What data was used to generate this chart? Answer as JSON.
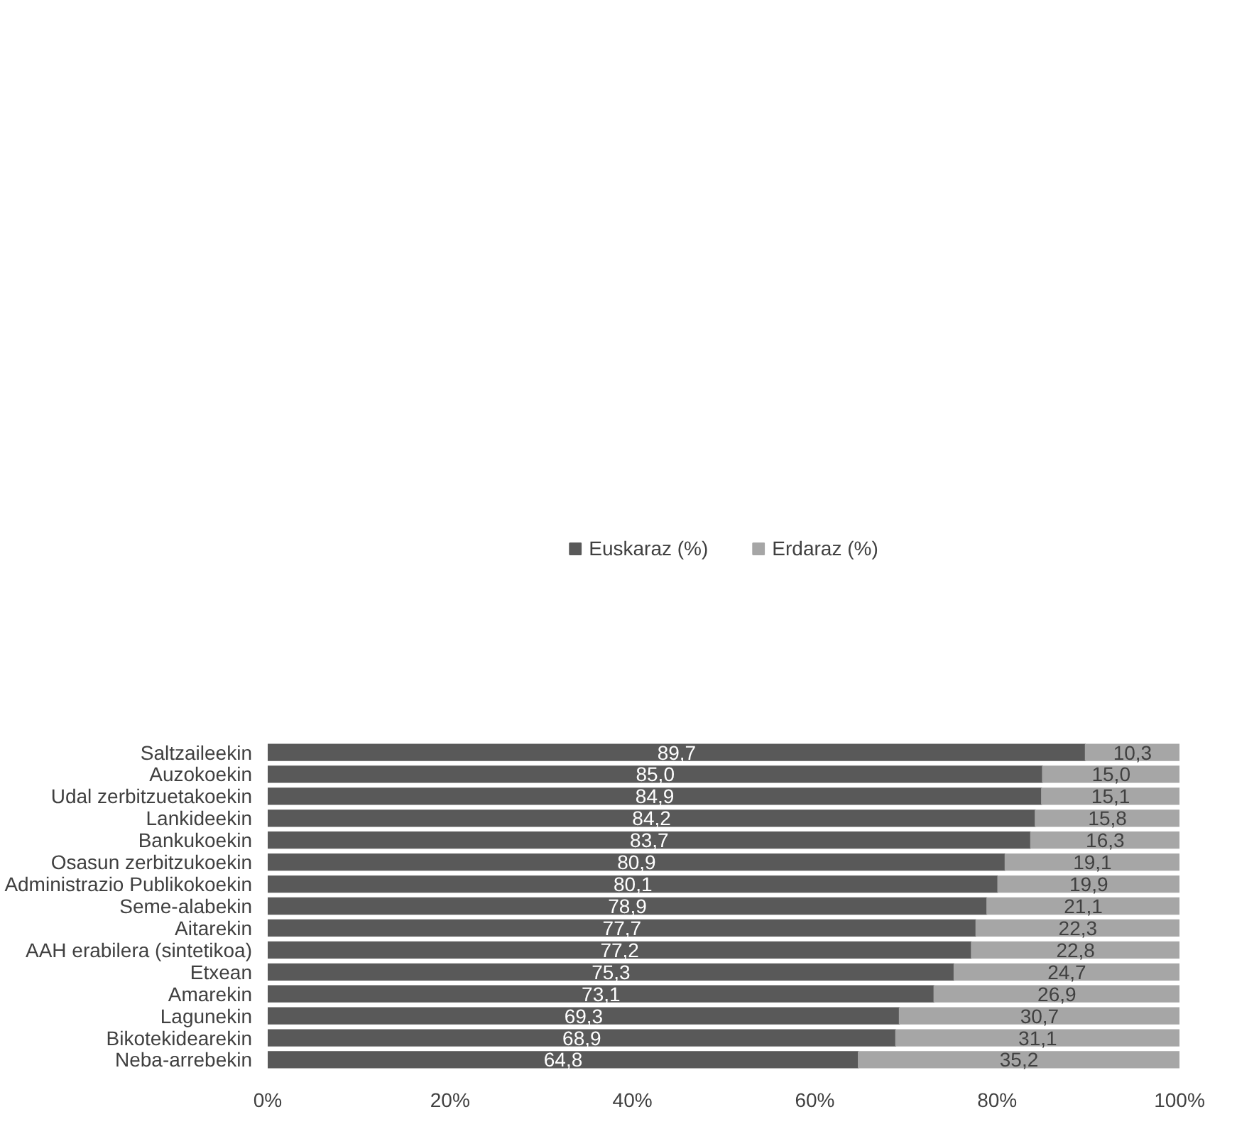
{
  "chart_data": {
    "type": "bar",
    "orientation": "horizontal",
    "stacked": true,
    "legend": "top",
    "grid": false,
    "categories": [
      "Saltzaileekin",
      "Auzokoekin",
      "Udal zerbitzuetakoekin",
      "Lankideekin",
      "Bankukoekin",
      "Osasun zerbitzukoekin",
      "Administrazio Publikokoekin",
      "Seme-alabekin",
      "Aitarekin",
      "AAH erabilera (sintetikoa)",
      "Etxean",
      "Amarekin",
      "Lagunekin",
      "Bikotekidearekin",
      "Neba-arrebekin"
    ],
    "xlim": [
      0,
      100
    ],
    "xticks": [
      {
        "value": 0,
        "label": "0%"
      },
      {
        "value": 20,
        "label": "20%"
      },
      {
        "value": 40,
        "label": "40%"
      },
      {
        "value": 60,
        "label": "60%"
      },
      {
        "value": 80,
        "label": "80%"
      },
      {
        "value": 100,
        "label": "100%"
      }
    ],
    "series": [
      {
        "name": "Euskaraz (%)",
        "color": "#595959",
        "values": [
          89.7,
          85.0,
          84.9,
          84.2,
          83.7,
          80.9,
          80.1,
          78.9,
          77.7,
          77.2,
          75.3,
          73.1,
          69.3,
          68.9,
          64.8
        ],
        "value_labels": [
          "89,7",
          "85,0",
          "84,9",
          "84,2",
          "83,7",
          "80,9",
          "80,1",
          "78,9",
          "77,7",
          "77,2",
          "75,3",
          "73,1",
          "69,3",
          "68,9",
          "64,8"
        ]
      },
      {
        "name": "Erdaraz (%)",
        "color": "#a6a6a6",
        "values": [
          10.3,
          15.0,
          15.1,
          15.8,
          16.3,
          19.1,
          19.9,
          21.1,
          22.3,
          22.8,
          24.7,
          26.9,
          30.7,
          31.1,
          35.2
        ],
        "value_labels": [
          "10,3",
          "15,0",
          "15,1",
          "15,8",
          "16,3",
          "19,1",
          "19,9",
          "21,1",
          "22,3",
          "22,8",
          "24,7",
          "26,9",
          "30,7",
          "31,1",
          "35,2"
        ]
      }
    ]
  }
}
